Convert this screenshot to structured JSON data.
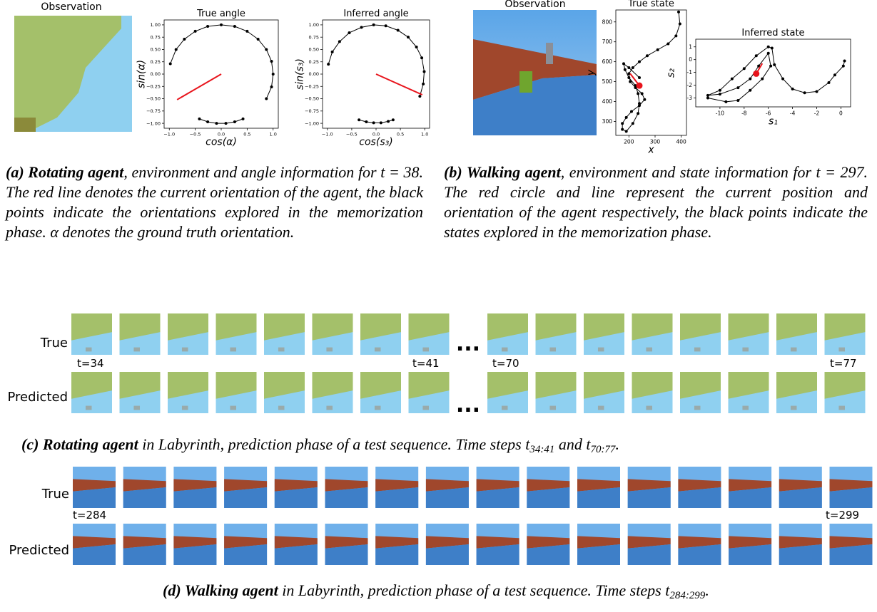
{
  "panel_a": {
    "observation_title": "Observation",
    "true_angle": {
      "type": "scatter",
      "title": "True angle",
      "x_label": "cos(α)",
      "y_label": "sin(α)",
      "xlim": [
        -1.1,
        1.1
      ],
      "ylim": [
        -1.1,
        1.1
      ],
      "xticks": [
        {
          "value": -1,
          "label": "−1.0"
        },
        {
          "value": -0.5,
          "label": "−0.5"
        },
        {
          "value": 0,
          "label": "0.0"
        },
        {
          "value": 0.5,
          "label": "0.5"
        },
        {
          "value": 1,
          "label": "1.0"
        }
      ],
      "yticks": [
        {
          "value": -1,
          "label": "−1.00"
        },
        {
          "value": -0.75,
          "label": "−0.75"
        },
        {
          "value": -0.5,
          "label": "−0.50"
        },
        {
          "value": -0.25,
          "label": "−0.25"
        },
        {
          "value": 0,
          "label": "0.00"
        },
        {
          "value": 0.25,
          "label": "0.25"
        },
        {
          "value": 0.5,
          "label": "0.50"
        },
        {
          "value": 0.75,
          "label": "0.75"
        },
        {
          "value": 1,
          "label": "1.00"
        }
      ],
      "color": "#000000",
      "x": [
        -0.98,
        -0.87,
        -0.71,
        -0.5,
        -0.26,
        0,
        0.26,
        0.5,
        0.71,
        0.87,
        0.97,
        1,
        0.97,
        0.87,
        null,
        -0.42,
        -0.26,
        -0.09,
        0.09,
        0.26,
        0.42
      ],
      "y": [
        0.21,
        0.5,
        0.71,
        0.87,
        0.97,
        1,
        0.97,
        0.87,
        0.71,
        0.5,
        0.26,
        0,
        -0.26,
        -0.5,
        null,
        -0.91,
        -0.97,
        -1.0,
        -1.0,
        -0.97,
        -0.91
      ],
      "highlight_color": "#e8141c",
      "highlight_line": {
        "x": [
          0,
          -0.85
        ],
        "y": [
          0,
          -0.52
        ]
      }
    },
    "inferred_angle": {
      "type": "scatter",
      "title": "Inferred angle",
      "x_label": "cos(s₃)",
      "y_label": "sin(s₃)",
      "xlim": [
        -1.1,
        1.1
      ],
      "ylim": [
        -1.1,
        1.1
      ],
      "xticks": [
        {
          "value": -1,
          "label": "−1.0"
        },
        {
          "value": -0.5,
          "label": "−0.5"
        },
        {
          "value": 0,
          "label": "0.0"
        },
        {
          "value": 0.5,
          "label": "0.5"
        },
        {
          "value": 1,
          "label": "1.0"
        }
      ],
      "yticks": [
        {
          "value": -1,
          "label": "−1.00"
        },
        {
          "value": -0.75,
          "label": "−0.75"
        },
        {
          "value": -0.5,
          "label": "−0.50"
        },
        {
          "value": -0.25,
          "label": "−0.25"
        },
        {
          "value": 0,
          "label": "0.00"
        },
        {
          "value": 0.25,
          "label": "0.25"
        },
        {
          "value": 0.5,
          "label": "0.50"
        },
        {
          "value": 0.75,
          "label": "0.75"
        },
        {
          "value": 1,
          "label": "1.00"
        }
      ],
      "color": "#000000",
      "x": [
        -0.98,
        -0.9,
        -0.75,
        -0.55,
        -0.3,
        -0.05,
        0.2,
        0.45,
        0.66,
        0.83,
        0.94,
        0.99,
        0.97,
        0.9,
        null,
        -0.35,
        -0.2,
        -0.05,
        0.1,
        0.25,
        0.35
      ],
      "y": [
        0.2,
        0.45,
        0.66,
        0.84,
        0.95,
        1,
        0.98,
        0.89,
        0.75,
        0.55,
        0.33,
        0.05,
        -0.2,
        -0.45,
        null,
        -0.93,
        -0.97,
        -0.99,
        -0.99,
        -0.96,
        -0.93
      ],
      "highlight_color": "#e8141c",
      "highlight_line": {
        "x": [
          0,
          0.95
        ],
        "y": [
          0,
          -0.42
        ]
      }
    },
    "caption": [
      {
        "text": "(a) ",
        "style": "label"
      },
      {
        "text": "Rotating agent",
        "style": "bold"
      },
      {
        "text": ", environment and angle information for t = 38. The red line denotes the current orientation of the agent, the black points indicate the orientations explored in the memorization phase. α denotes the ground truth orientation.",
        "style": "italic"
      }
    ]
  },
  "panel_b": {
    "observation_title": "Observation",
    "true_state": {
      "type": "scatter",
      "title": "True state",
      "x_label": "x",
      "y_label": "y",
      "xlim": [
        150,
        420
      ],
      "ylim": [
        230,
        860
      ],
      "xticks": [
        200,
        300,
        400
      ],
      "yticks": [
        300,
        400,
        500,
        600,
        700,
        800
      ],
      "color": "#000000",
      "x": [
        390,
        395,
        380,
        350,
        310,
        270,
        240,
        215,
        200,
        205,
        225,
        250,
        260,
        240,
        210,
        190,
        175,
        175,
        190,
        215,
        235,
        240,
        235,
        225,
        200,
        185,
        180,
        200,
        240
      ],
      "y": [
        850,
        790,
        730,
        690,
        660,
        630,
        600,
        570,
        540,
        500,
        470,
        440,
        410,
        380,
        350,
        320,
        290,
        260,
        250,
        290,
        340,
        390,
        440,
        480,
        520,
        560,
        590,
        570,
        520
      ],
      "highlight_color": "#e8141c",
      "highlight_line": {
        "x": [
          205,
          240
        ],
        "y": [
          540,
          480
        ]
      },
      "highlight_point": {
        "x": 240,
        "y": 480
      }
    },
    "inferred_state": {
      "type": "scatter",
      "title": "Inferred state",
      "x_label": "s₁",
      "y_label": "s₂",
      "xlim": [
        -12,
        0.8
      ],
      "ylim": [
        -3.7,
        1.6
      ],
      "xticks": [
        -10,
        -8,
        -6,
        -4,
        -2,
        0
      ],
      "yticks": [
        -3,
        -2,
        -1,
        0,
        1
      ],
      "color": "#000000",
      "x": [
        0.3,
        0.2,
        -0.5,
        -1,
        -2,
        -3,
        -4,
        -4.8,
        -5.5,
        -5.7,
        -6,
        -7,
        -8,
        -9,
        -10,
        -11,
        -10,
        -8.5,
        -7.5,
        -6.8,
        -6,
        -5.8,
        -6.5,
        -7.5,
        -8.5,
        -9.5,
        -11
      ],
      "y": [
        -0.1,
        -0.5,
        -1.2,
        -1.8,
        -2.5,
        -2.6,
        -2.3,
        -1.5,
        -0.4,
        0.9,
        1.0,
        0.3,
        -0.7,
        -1.5,
        -2.4,
        -2.8,
        -2.7,
        -2.2,
        -1.5,
        -0.5,
        0.5,
        -0.5,
        -1.5,
        -2.4,
        -3.2,
        -3.3,
        -3.0
      ],
      "highlight_color": "#e8141c",
      "highlight_line": {
        "x": [
          -7,
          -6.5
        ],
        "y": [
          -1.1,
          -0.3
        ]
      },
      "highlight_point": {
        "x": -7,
        "y": -1.1
      }
    },
    "caption": [
      {
        "text": "(b) ",
        "style": "label"
      },
      {
        "text": "Walking agent",
        "style": "bold"
      },
      {
        "text": ", environment and state information for t = 297. The red circle and line represent the current position and orientation of the agent respectively, the black points indicate the states explored in the memorization phase.",
        "style": "italic"
      }
    ]
  },
  "panel_c": {
    "row_labels": [
      "True",
      "Predicted"
    ],
    "time_labels": [
      "t=34",
      "t=41",
      "t=70",
      "t=77"
    ],
    "ellipsis": "...",
    "caption": [
      {
        "text": "(c) ",
        "style": "label"
      },
      {
        "text": "Rotating agent",
        "style": "bold"
      },
      {
        "text": " in Labyrinth, prediction phase of a test sequence. Time steps ",
        "style": "italic"
      },
      {
        "text": "t",
        "style": "italic"
      },
      {
        "text": "34:41",
        "style": "sub"
      },
      {
        "text": " and ",
        "style": "italic"
      },
      {
        "text": "t",
        "style": "italic"
      },
      {
        "text": "70:77",
        "style": "sub"
      },
      {
        "text": ".",
        "style": "italic"
      }
    ]
  },
  "panel_d": {
    "row_labels": [
      "True",
      "Predicted"
    ],
    "time_labels": [
      "t=284",
      "t=299"
    ],
    "caption": [
      {
        "text": "(d) ",
        "style": "label"
      },
      {
        "text": "Walking agent",
        "style": "bold"
      },
      {
        "text": " in Labyrinth, prediction phase of a test sequence. Time steps ",
        "style": "italic"
      },
      {
        "text": "t",
        "style": "italic"
      },
      {
        "text": "284:299",
        "style": "sub"
      },
      {
        "text": ".",
        "style": "italic"
      }
    ]
  }
}
